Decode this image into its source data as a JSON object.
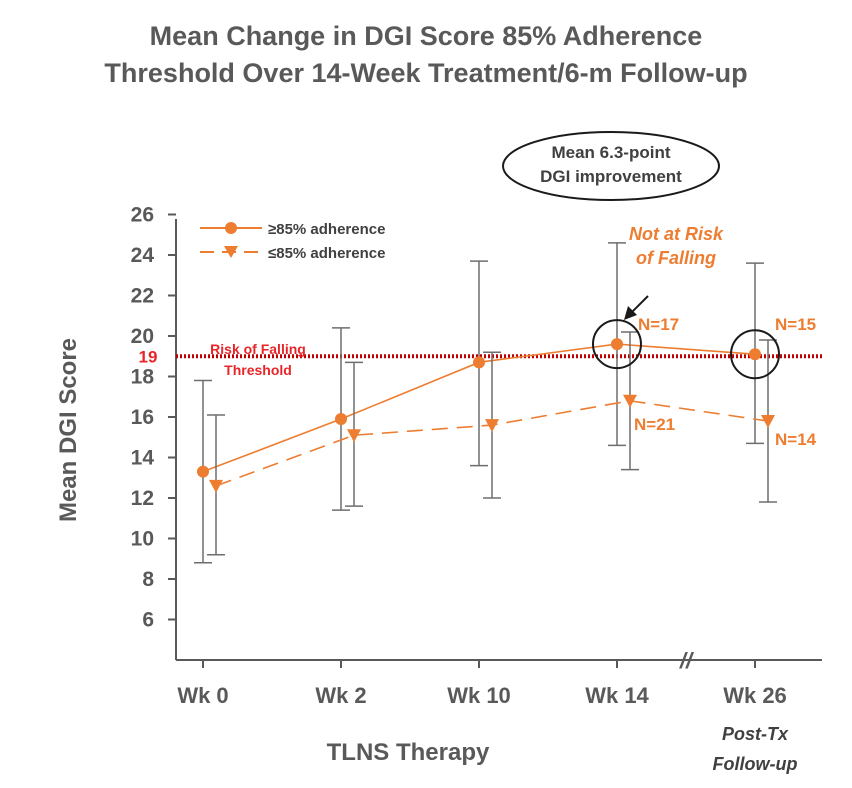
{
  "chart_data": {
    "type": "line",
    "title_line1": "Mean Change in DGI Score 85% Adherence",
    "title_line2": "Threshold Over 14-Week Treatment/6-m Follow-up",
    "xlabel": "TLNS Therapy",
    "ylabel": "Mean DGI Score",
    "categories": [
      "Wk 0",
      "Wk 2",
      "Wk 10",
      "Wk 14",
      "Wk 26"
    ],
    "followup_line1": "Post-Tx",
    "followup_line2": "Follow-up",
    "axis_break_symbol": "//",
    "ylim": [
      5,
      26
    ],
    "yticks": [
      6,
      8,
      10,
      12,
      14,
      16,
      18,
      20,
      22,
      24,
      26
    ],
    "series": [
      {
        "name": "≥85% adherence",
        "color": "#ED7D31",
        "marker": "circle",
        "line_style": "solid",
        "values": [
          13.3,
          15.9,
          18.7,
          19.6,
          19.1
        ],
        "err_low": [
          8.8,
          11.4,
          13.6,
          14.6,
          14.7
        ],
        "err_high": [
          17.8,
          20.4,
          23.7,
          24.6,
          23.6
        ]
      },
      {
        "name": "≤85% adherence",
        "color": "#ED7D31",
        "marker": "triangle-down",
        "line_style": "dashed",
        "values": [
          12.6,
          15.1,
          15.6,
          16.8,
          15.8
        ],
        "err_low": [
          9.2,
          11.6,
          12.0,
          13.4,
          11.8
        ],
        "err_high": [
          16.1,
          18.7,
          19.2,
          20.2,
          19.8
        ]
      }
    ],
    "threshold": {
      "value": 19,
      "value_label": "19",
      "label_line1": "Risk of Falling",
      "label_line2": "Threshold",
      "color": "#C00000"
    },
    "annotations": {
      "n_hi_wk14": "N=17",
      "n_lo_wk14": "N=21",
      "n_hi_wk26": "N=15",
      "n_lo_wk26": "N=14",
      "not_at_risk_line1": "Not at Risk",
      "not_at_risk_line2": "of Falling",
      "callout_line1": "Mean 6.3-point",
      "callout_line2": "DGI improvement"
    },
    "grid": false,
    "legend_position": "top-left"
  }
}
